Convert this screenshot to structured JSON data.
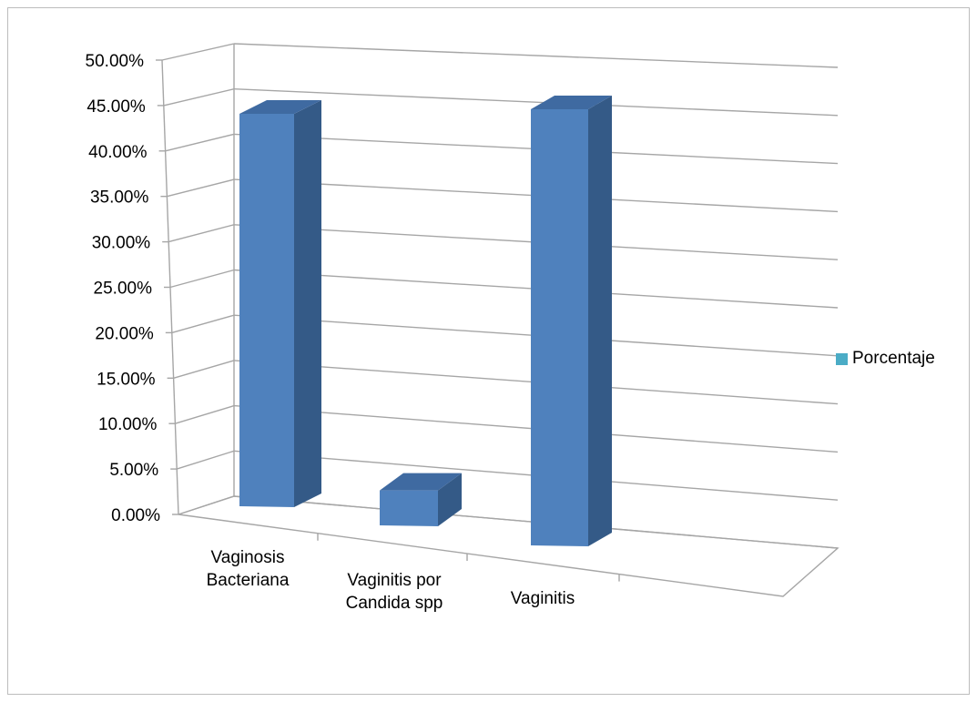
{
  "chart_data": {
    "type": "bar",
    "style": "3d-column",
    "categories": [
      [
        "Vaginosis",
        "Bacteriana"
      ],
      [
        "Vaginitis por",
        "Candida spp"
      ],
      [
        "Vaginitis"
      ]
    ],
    "series": [
      {
        "name": "Porcentaje",
        "values": [
          0.45,
          0.04,
          0.48
        ]
      }
    ],
    "y_ticks": [
      "0.00%",
      "5.00%",
      "10.00%",
      "15.00%",
      "20.00%",
      "25.00%",
      "30.00%",
      "35.00%",
      "40.00%",
      "45.00%",
      "50.00%"
    ],
    "ylim": [
      0,
      0.5
    ],
    "grid": true,
    "legend_position": "right",
    "colors": {
      "bar_front": "#4f81bd",
      "bar_side": "#345a87",
      "bar_top": "#3f6aa1",
      "grid": "#a6a6a6",
      "legend_swatch": "#4bacc6"
    }
  }
}
